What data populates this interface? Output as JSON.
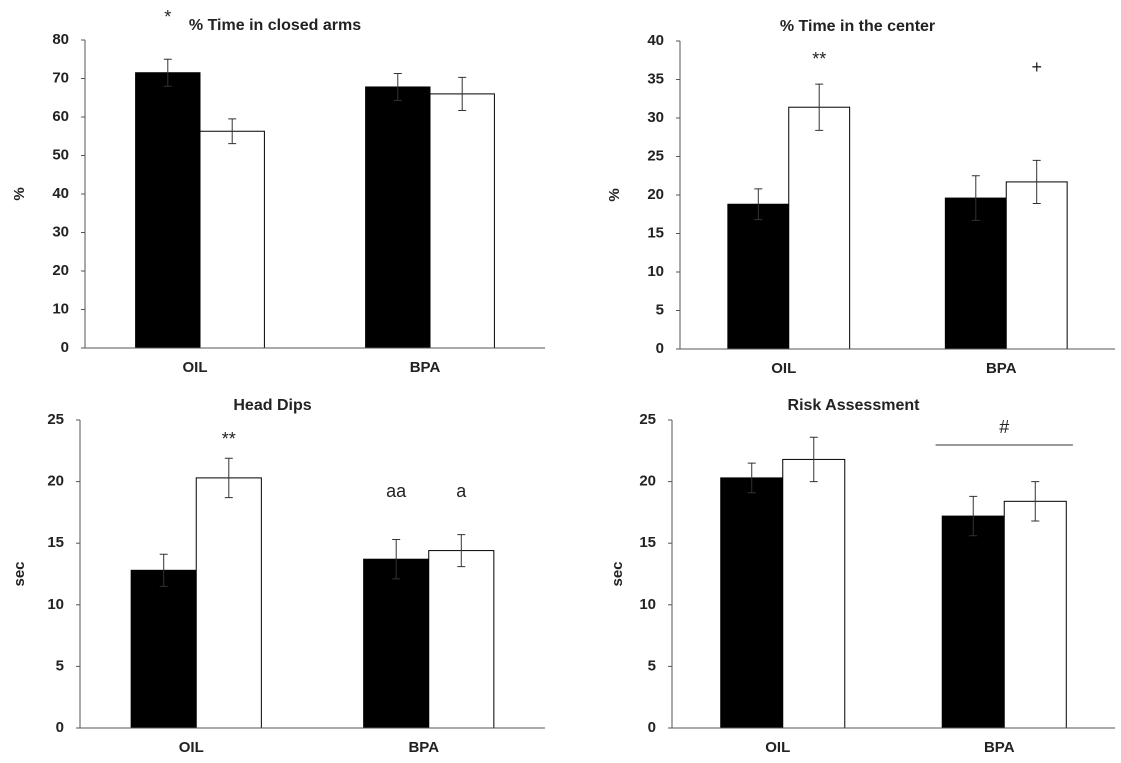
{
  "chart_data": [
    {
      "type": "bar",
      "title": "% Time in closed arms",
      "y_label": "%",
      "categories": [
        "OIL",
        "BPA"
      ],
      "series": [
        {
          "color": "#000000",
          "values": [
            71.5,
            67.8
          ],
          "errors": [
            3.5,
            3.5
          ]
        },
        {
          "color": "#ffffff",
          "values": [
            56.3,
            66
          ],
          "errors": [
            3.2,
            4.3
          ]
        }
      ],
      "ylim": [
        0,
        80
      ],
      "yticks": [
        0,
        10,
        20,
        30,
        40,
        50,
        60,
        70,
        80
      ],
      "annotations": [
        "*"
      ]
    },
    {
      "type": "bar",
      "title": "% Time in the center",
      "y_label": "%",
      "categories": [
        "OIL",
        "BPA"
      ],
      "series": [
        {
          "color": "#000000",
          "values": [
            18.8,
            19.6
          ],
          "errors": [
            2,
            2.9
          ]
        },
        {
          "color": "#ffffff",
          "values": [
            31.4,
            21.7
          ],
          "errors": [
            3,
            2.8
          ]
        }
      ],
      "ylim": [
        0,
        40
      ],
      "yticks": [
        0,
        5,
        10,
        15,
        20,
        25,
        30,
        35,
        40
      ],
      "annotations": [
        "**",
        "+"
      ]
    },
    {
      "type": "bar",
      "title": "Head Dips",
      "y_label": "sec",
      "categories": [
        "OIL",
        "BPA"
      ],
      "series": [
        {
          "color": "#000000",
          "values": [
            12.8,
            13.7
          ],
          "errors": [
            1.3,
            1.6
          ]
        },
        {
          "color": "#ffffff",
          "values": [
            20.3,
            14.4
          ],
          "errors": [
            1.6,
            1.3
          ]
        }
      ],
      "ylim": [
        0,
        25
      ],
      "yticks": [
        0,
        5,
        10,
        15,
        20,
        25
      ],
      "annotations": [
        "**",
        "aa",
        "a"
      ]
    },
    {
      "type": "bar",
      "title": "Risk Assessment",
      "y_label": "sec",
      "categories": [
        "OIL",
        "BPA"
      ],
      "series": [
        {
          "color": "#000000",
          "values": [
            20.3,
            17.2
          ],
          "errors": [
            1.2,
            1.6
          ]
        },
        {
          "color": "#ffffff",
          "values": [
            21.8,
            18.4
          ],
          "errors": [
            1.8,
            1.6
          ]
        }
      ],
      "ylim": [
        0,
        25
      ],
      "yticks": [
        0,
        5,
        10,
        15,
        20,
        25
      ],
      "annotations": [
        "#"
      ]
    }
  ]
}
